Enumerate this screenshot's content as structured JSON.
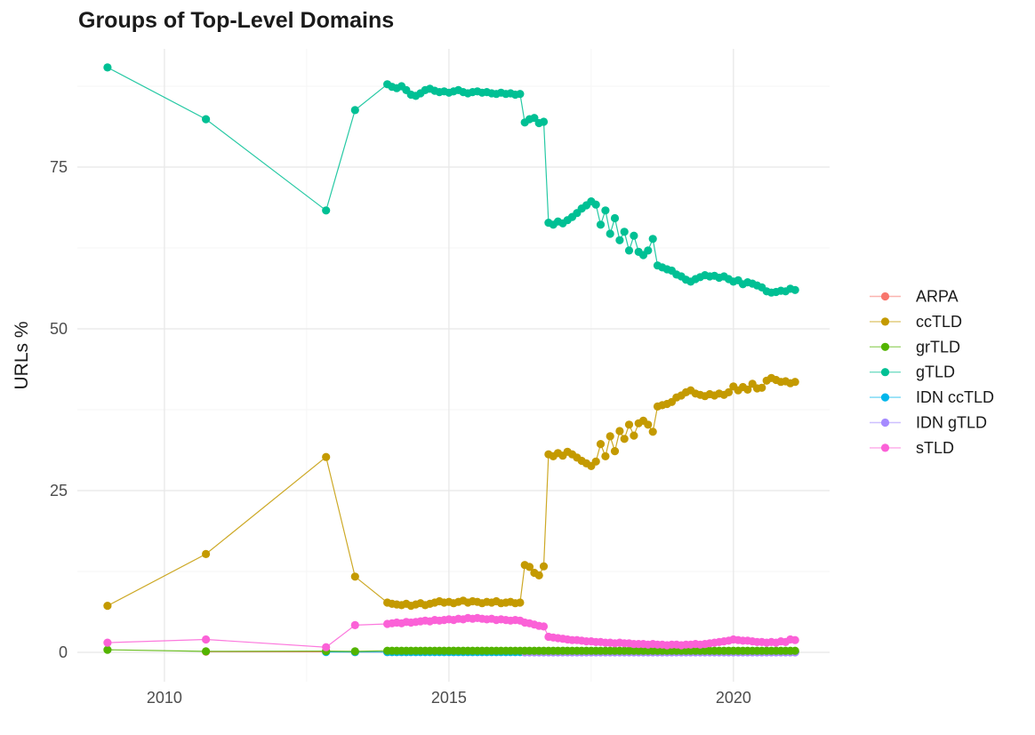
{
  "title": "Groups of Top-Level Domains",
  "y_axis_label": "URLs %",
  "chart_data": {
    "type": "line",
    "title": "Groups of Top-Level Domains",
    "xlabel": "",
    "ylabel": "URLs %",
    "grid": true,
    "legend_position": "right",
    "x_range": [
      2008.47,
      2021.69
    ],
    "y_range": [
      -4.53,
      93.27
    ],
    "x_ticks": [
      {
        "value": 2010,
        "label": "2010"
      },
      {
        "value": 2015,
        "label": "2015"
      },
      {
        "value": 2020,
        "label": "2020"
      }
    ],
    "x_minor_ticks": [
      2012.5,
      2017.5
    ],
    "y_ticks": [
      {
        "value": 0,
        "label": "0"
      },
      {
        "value": 25,
        "label": "25"
      },
      {
        "value": 50,
        "label": "50"
      },
      {
        "value": 75,
        "label": "75"
      }
    ],
    "y_minor_ticks": [
      12.5,
      37.5,
      62.5,
      87.5
    ],
    "draw_order": [
      "ARPA",
      "IDN ccTLD",
      "IDN gTLD",
      "grTLD",
      "ccTLD",
      "gTLD",
      "sTLD"
    ],
    "series": [
      {
        "name": "ARPA",
        "color": "#F8766D",
        "sparse": [
          [
            2010.73,
            0.1
          ],
          [
            2012.84,
            0.08
          ],
          [
            2013.35,
            0.05
          ]
        ],
        "dense": {
          "start": 2013.9167,
          "step": 0.08333,
          "const": 0.05,
          "count": 87
        }
      },
      {
        "name": "ccTLD",
        "color": "#C49A00",
        "sparse": [
          [
            2009.0,
            7.2
          ],
          [
            2010.73,
            15.2
          ],
          [
            2012.84,
            30.2
          ],
          [
            2013.35,
            11.7
          ]
        ],
        "dense": {
          "start": 2013.9167,
          "step": 0.08333,
          "values": [
            7.7,
            7.5,
            7.4,
            7.3,
            7.5,
            7.2,
            7.4,
            7.6,
            7.3,
            7.5,
            7.7,
            7.9,
            7.7,
            7.8,
            7.6,
            7.8,
            8.0,
            7.7,
            7.9,
            7.8,
            7.6,
            7.8,
            7.7,
            7.9,
            7.6,
            7.7,
            7.8,
            7.6,
            7.7,
            13.5,
            13.2,
            12.3,
            11.9,
            13.3,
            30.6,
            30.3,
            30.8,
            30.4,
            31.0,
            30.6,
            30.1,
            29.6,
            29.2,
            28.8,
            29.5,
            32.2,
            30.3,
            33.4,
            31.1,
            34.2,
            33.0,
            35.2,
            33.5,
            35.4,
            35.8,
            35.2,
            34.1,
            38.0,
            38.2,
            38.4,
            38.7,
            39.4,
            39.7,
            40.2,
            40.5,
            40.0,
            39.8,
            39.6,
            39.9,
            39.7,
            40.0,
            39.8,
            40.2,
            41.1,
            40.5,
            41.0,
            40.6,
            41.5,
            40.8,
            40.9,
            42.0,
            42.4,
            42.1,
            41.8,
            41.9,
            41.6,
            41.8
          ]
        }
      },
      {
        "name": "grTLD",
        "color": "#53B400",
        "sparse": [
          [
            2009.0,
            0.4
          ],
          [
            2010.73,
            0.15
          ],
          [
            2012.84,
            0.2
          ],
          [
            2013.35,
            0.15
          ]
        ],
        "dense": {
          "start": 2013.9167,
          "step": 0.08333,
          "const": 0.25,
          "count": 87
        }
      },
      {
        "name": "gTLD",
        "color": "#00C094",
        "sparse": [
          [
            2009.0,
            90.4
          ],
          [
            2010.73,
            82.4
          ],
          [
            2012.84,
            68.3
          ],
          [
            2013.35,
            83.8
          ]
        ],
        "dense": {
          "start": 2013.9167,
          "step": 0.08333,
          "values": [
            87.8,
            87.4,
            87.2,
            87.5,
            86.9,
            86.2,
            86.0,
            86.4,
            86.9,
            87.1,
            86.8,
            86.6,
            86.7,
            86.5,
            86.7,
            86.9,
            86.6,
            86.4,
            86.6,
            86.7,
            86.5,
            86.6,
            86.4,
            86.3,
            86.5,
            86.3,
            86.4,
            86.2,
            86.3,
            81.9,
            82.4,
            82.6,
            81.8,
            82.0,
            66.4,
            66.1,
            66.6,
            66.3,
            66.8,
            67.3,
            67.9,
            68.6,
            69.1,
            69.7,
            69.2,
            66.1,
            68.3,
            64.7,
            67.1,
            63.7,
            65.0,
            62.1,
            64.4,
            61.9,
            61.4,
            62.1,
            63.9,
            59.8,
            59.5,
            59.2,
            59.0,
            58.4,
            58.1,
            57.6,
            57.3,
            57.7,
            58.0,
            58.3,
            58.1,
            58.2,
            57.9,
            58.1,
            57.7,
            57.3,
            57.5,
            56.9,
            57.2,
            57.0,
            56.7,
            56.4,
            55.8,
            55.6,
            55.7,
            55.9,
            55.8,
            56.2,
            56.0
          ]
        }
      },
      {
        "name": "IDN ccTLD",
        "color": "#00B6EB",
        "sparse": [
          [
            2012.84,
            0.06
          ],
          [
            2013.35,
            0.05
          ]
        ],
        "dense": {
          "start": 2013.9167,
          "step": 0.08333,
          "const": 0.04,
          "count": 87
        }
      },
      {
        "name": "IDN gTLD",
        "color": "#A58AFF",
        "sparse": [],
        "dense": {
          "start": 2016.3333,
          "step": 0.08333,
          "const": 0.0,
          "count": 58
        }
      },
      {
        "name": "sTLD",
        "color": "#FB61D7",
        "sparse": [
          [
            2009.0,
            1.5
          ],
          [
            2010.73,
            2.0
          ],
          [
            2012.84,
            0.8
          ],
          [
            2013.35,
            4.2
          ]
        ],
        "dense": {
          "start": 2013.9167,
          "step": 0.08333,
          "values": [
            4.4,
            4.5,
            4.6,
            4.5,
            4.7,
            4.6,
            4.7,
            4.8,
            4.9,
            4.8,
            5.0,
            4.9,
            5.0,
            5.1,
            5.0,
            5.2,
            5.1,
            5.3,
            5.2,
            5.3,
            5.2,
            5.1,
            5.2,
            5.0,
            5.1,
            5.0,
            4.9,
            5.0,
            4.9,
            4.6,
            4.5,
            4.3,
            4.1,
            4.0,
            2.4,
            2.3,
            2.2,
            2.1,
            2.0,
            1.9,
            1.9,
            1.8,
            1.7,
            1.7,
            1.6,
            1.6,
            1.5,
            1.5,
            1.4,
            1.5,
            1.4,
            1.4,
            1.3,
            1.3,
            1.3,
            1.2,
            1.3,
            1.2,
            1.2,
            1.1,
            1.2,
            1.2,
            1.1,
            1.2,
            1.2,
            1.3,
            1.2,
            1.3,
            1.4,
            1.5,
            1.6,
            1.7,
            1.8,
            2.0,
            1.9,
            1.8,
            1.8,
            1.7,
            1.6,
            1.6,
            1.5,
            1.6,
            1.5,
            1.7,
            1.6,
            2.0,
            1.9
          ]
        }
      }
    ]
  }
}
